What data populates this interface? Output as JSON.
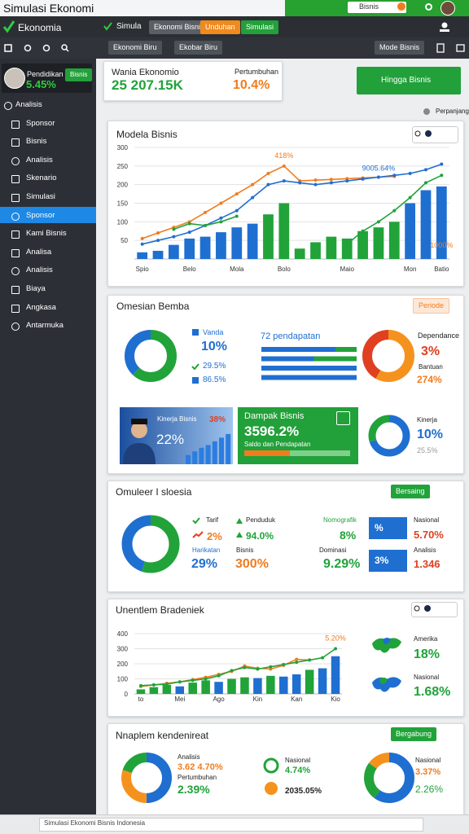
{
  "topbar": {
    "title": "Simulasi Ekonomi",
    "search": "Bisnis"
  },
  "appbar": {
    "brand": "Ekonomia",
    "tabs": [
      "Simula",
      "Ekonomi Bisnis",
      "Unduhan",
      "Simulasi"
    ]
  },
  "toolbar": {
    "filters": [
      "Ekonomi Biru",
      "Ekobar Biru"
    ],
    "mode": "Mode Bisnis"
  },
  "sidebar": {
    "profile": {
      "name": "Pendidikan",
      "value": "5.45%",
      "tag": "Bisnis"
    },
    "items": [
      "Analisis",
      "Sponsor",
      "Bisnis",
      "Analisis",
      "Skenario",
      "Simulasi",
      "Sponsor",
      "Kami Bisnis",
      "Analisa",
      "Analisis",
      "Biaya",
      "Angkasa",
      "Antarmuka"
    ],
    "active": 6
  },
  "summary": {
    "title": "Wania Ekonomio",
    "value": "25 207.15K",
    "growth_label": "Pertumbuhan",
    "growth": "10.4%",
    "button": "Hingga Bisnis",
    "link": "Perpanjang"
  },
  "overview": {
    "title": "Omesian Bemba",
    "button": "Periode",
    "legend": {
      "name": "Vanda",
      "value": "10%",
      "items": [
        "29.5%",
        "86.5%"
      ]
    },
    "bars_title": "72 pendapatan",
    "progress": {
      "xlim": [
        0,
        100
      ],
      "values": [
        78,
        55,
        100,
        100
      ],
      "colors": [
        "#1f6fd1",
        "#21a33a"
      ]
    },
    "right": {
      "label_a": "Dependance",
      "value_a": "3%",
      "label_b": "Bantuan",
      "value_b": "274%"
    },
    "photo": {
      "title": "Kinerja Bisnis",
      "value": "22%",
      "badge": "38%",
      "bars": [
        20,
        28,
        36,
        42,
        50,
        58,
        66
      ],
      "ylim": [
        0,
        80
      ]
    },
    "impact": {
      "title": "Dampak Bisnis",
      "value": "3596.2%",
      "caption": "Saldo dan Pendapatan"
    },
    "perf": {
      "label": "Kinerja",
      "value": "10%",
      "sub": "25.5%"
    }
  },
  "indicators": {
    "title": "Omuleer I sloesia",
    "button": "Bersaing",
    "items": [
      {
        "label": "Tarif",
        "value": "2%"
      },
      {
        "label": "Penduduk",
        "value": "94.0%"
      },
      {
        "label": "Nomografik",
        "value": "8%"
      },
      {
        "label": "Harikatan",
        "value": "29%"
      },
      {
        "label": "Bisnis",
        "value": "300%"
      },
      {
        "label": "Dominasi",
        "value": "9.29%"
      },
      {
        "label": "Nasional",
        "value": "5.70%"
      },
      {
        "label": "Analisis",
        "value": "1.346"
      }
    ],
    "tiles": [
      "%",
      "3%"
    ]
  },
  "regions": {
    "items": [
      {
        "label": "Amerika",
        "value": "18%"
      },
      {
        "label": "Nasional",
        "value": "1.68%"
      }
    ]
  },
  "outlook": {
    "title": "Nnaplem kendenireat",
    "button": "Bergabung",
    "left": {
      "label": "Analisis",
      "value": "3.62 4.70%",
      "label_b": "Pertumbuhan",
      "value_b": "2.39%"
    },
    "mid": {
      "label": "Nasional",
      "value": "4.74%",
      "value_b": "2035.05%"
    },
    "right": {
      "label": "Nasional",
      "value": "3.37%",
      "value_b": "2.26%"
    }
  },
  "donuts": [
    {
      "values": [
        62,
        38
      ],
      "colors": [
        "#21a33a",
        "#1f6fd1"
      ]
    },
    {
      "values": [
        58,
        42
      ],
      "colors": [
        "#f5921e",
        "#e0401f"
      ]
    },
    {
      "values": [
        70,
        30
      ],
      "colors": [
        "#1f6fd1",
        "#21a33a"
      ]
    },
    {
      "values": [
        55,
        45
      ],
      "colors": [
        "#21a33a",
        "#1f6fd1"
      ]
    },
    {
      "values": [
        50,
        30,
        20
      ],
      "colors": [
        "#1f6fd1",
        "#f5921e",
        "#21a33a"
      ]
    },
    {
      "values": [
        60,
        25,
        15
      ],
      "colors": [
        "#1f6fd1",
        "#21a33a",
        "#f5921e"
      ]
    }
  ],
  "chart_data": [
    {
      "type": "bar",
      "title": "Modela Bisnis",
      "grid": true,
      "ylim": [
        0,
        300
      ],
      "yticks": [
        50,
        100,
        150,
        200,
        250,
        300
      ],
      "categories": [
        "Spio",
        null,
        null,
        "Belo",
        null,
        null,
        "Mola",
        null,
        null,
        "Bolo",
        null,
        null,
        null,
        "Maio",
        null,
        null,
        null,
        "Mon",
        null,
        "Batio"
      ],
      "series": [
        {
          "type": "bar",
          "color": "#1f6fd1",
          "values": [
            18,
            22,
            38,
            55,
            60,
            72,
            85,
            95,
            null,
            null,
            null,
            null,
            null,
            null,
            null,
            null,
            null,
            150,
            185,
            195
          ]
        },
        {
          "type": "bar",
          "color": "#21a33a",
          "values": [
            null,
            null,
            null,
            null,
            null,
            null,
            null,
            null,
            120,
            150,
            28,
            45,
            60,
            55,
            75,
            85,
            100,
            null,
            null,
            null
          ]
        },
        {
          "type": "line",
          "color": "#f07c1e",
          "values": [
            55,
            70,
            85,
            100,
            125,
            150,
            175,
            200,
            230,
            250,
            210,
            212,
            214,
            216,
            218,
            220,
            222,
            null,
            null,
            null
          ]
        },
        {
          "type": "line",
          "color": "#1f6fd1",
          "values": [
            40,
            50,
            60,
            72,
            90,
            110,
            130,
            165,
            200,
            210,
            205,
            200,
            205,
            210,
            215,
            220,
            225,
            230,
            240,
            255
          ]
        },
        {
          "type": "line",
          "color": "#21a33a",
          "values": [
            null,
            null,
            80,
            95,
            90,
            100,
            115,
            null,
            null,
            null,
            null,
            null,
            null,
            40,
            75,
            100,
            130,
            165,
            205,
            225
          ]
        }
      ],
      "annotations": [
        {
          "text": "418%",
          "color": "#f07c1e"
        },
        {
          "text": "9005.64%",
          "color": "#1f6fd1"
        },
        {
          "text": "1000%",
          "color": "#f07c1e"
        }
      ]
    },
    {
      "type": "bar",
      "title": "Unentlem Bradeniek",
      "grid": true,
      "ylim": [
        0,
        400
      ],
      "yticks": [
        0,
        100,
        200,
        300,
        400
      ],
      "categories": [
        "to",
        null,
        null,
        "Mei",
        null,
        null,
        "Ago",
        null,
        null,
        "Kin",
        null,
        null,
        "Kan",
        null,
        null,
        "Kio"
      ],
      "series": [
        {
          "type": "bar",
          "color": "#21a33a",
          "values": [
            30,
            45,
            60,
            null,
            75,
            90,
            null,
            100,
            110,
            null,
            120,
            null,
            null,
            160,
            null,
            null
          ]
        },
        {
          "type": "bar",
          "color": "#1f6fd1",
          "values": [
            null,
            null,
            null,
            50,
            null,
            null,
            80,
            null,
            null,
            105,
            null,
            115,
            130,
            null,
            170,
            250
          ]
        },
        {
          "type": "line",
          "color": "#f07c1e",
          "values": [
            50,
            60,
            70,
            80,
            95,
            110,
            130,
            150,
            185,
            170,
            165,
            190,
            230,
            225,
            null,
            null
          ]
        },
        {
          "type": "line",
          "color": "#21a33a",
          "values": [
            55,
            60,
            65,
            80,
            90,
            100,
            120,
            155,
            175,
            165,
            180,
            195,
            210,
            225,
            240,
            300
          ]
        }
      ],
      "annotations": [
        {
          "text": "5.20%",
          "color": "#f07c1e"
        }
      ]
    }
  ],
  "footer": "Simulasi Ekonomi Bisnis Indonesia"
}
